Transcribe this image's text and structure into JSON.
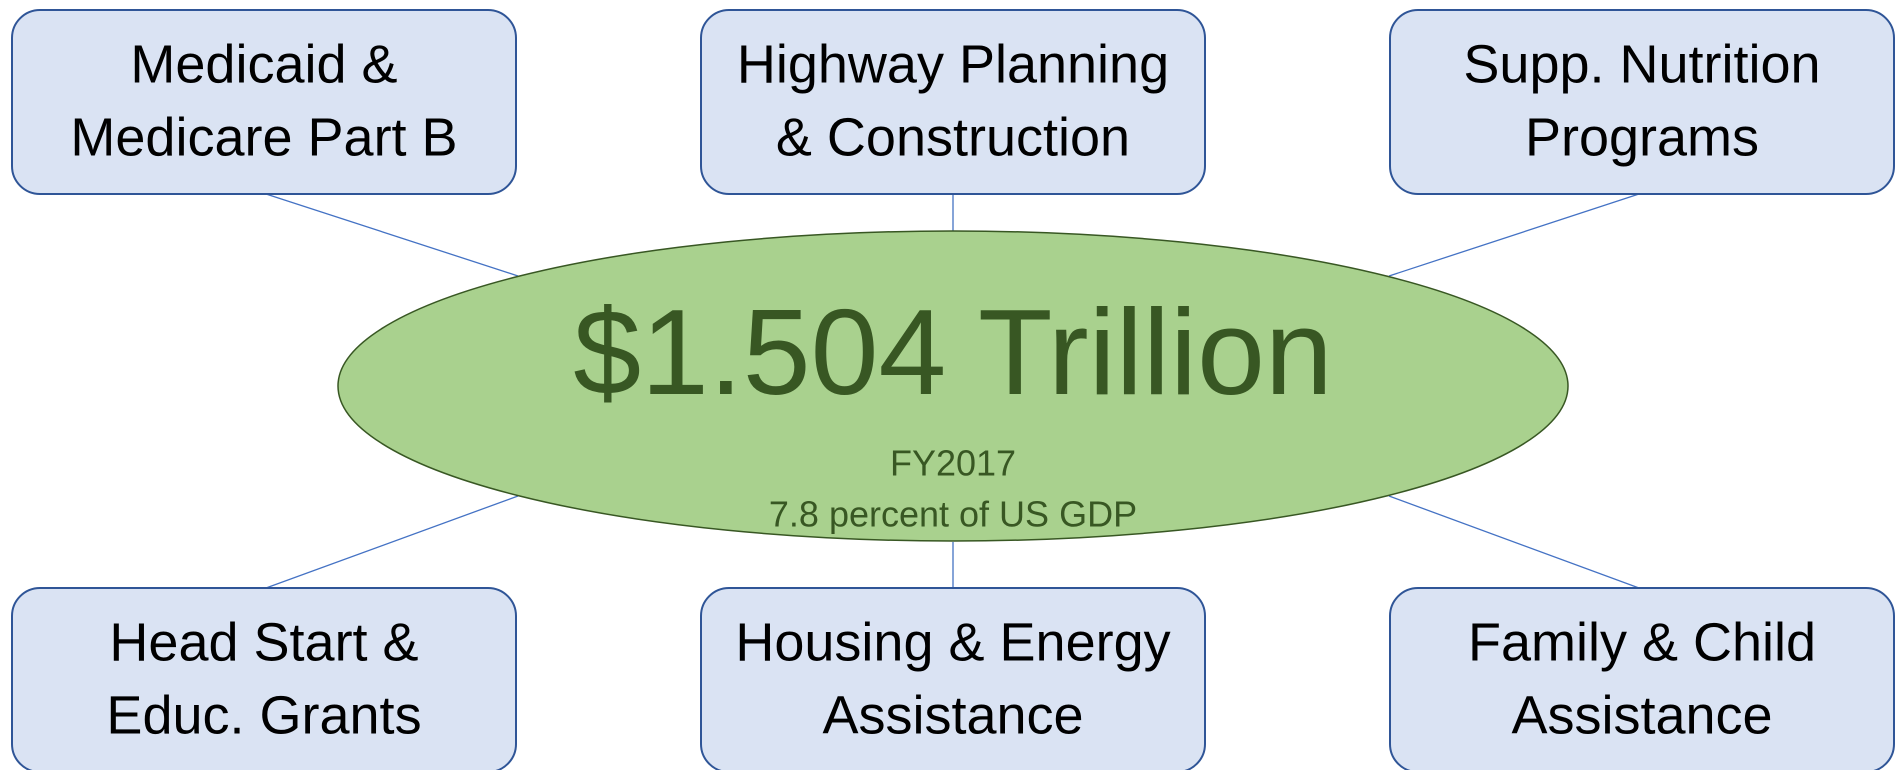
{
  "center": {
    "amount": "$1.504 Trillion",
    "fiscal_year": "FY2017",
    "gdp_share": "7.8 percent of US GDP"
  },
  "nodes": [
    {
      "lines": [
        "Medicaid &",
        "Medicare Part B"
      ]
    },
    {
      "lines": [
        "Highway Planning",
        "& Construction"
      ]
    },
    {
      "lines": [
        "Supp. Nutrition",
        "Programs"
      ]
    },
    {
      "lines": [
        "Head Start &",
        "Educ. Grants"
      ]
    },
    {
      "lines": [
        "Housing & Energy",
        "Assistance"
      ]
    },
    {
      "lines": [
        "Family & Child",
        "Assistance"
      ]
    }
  ]
}
